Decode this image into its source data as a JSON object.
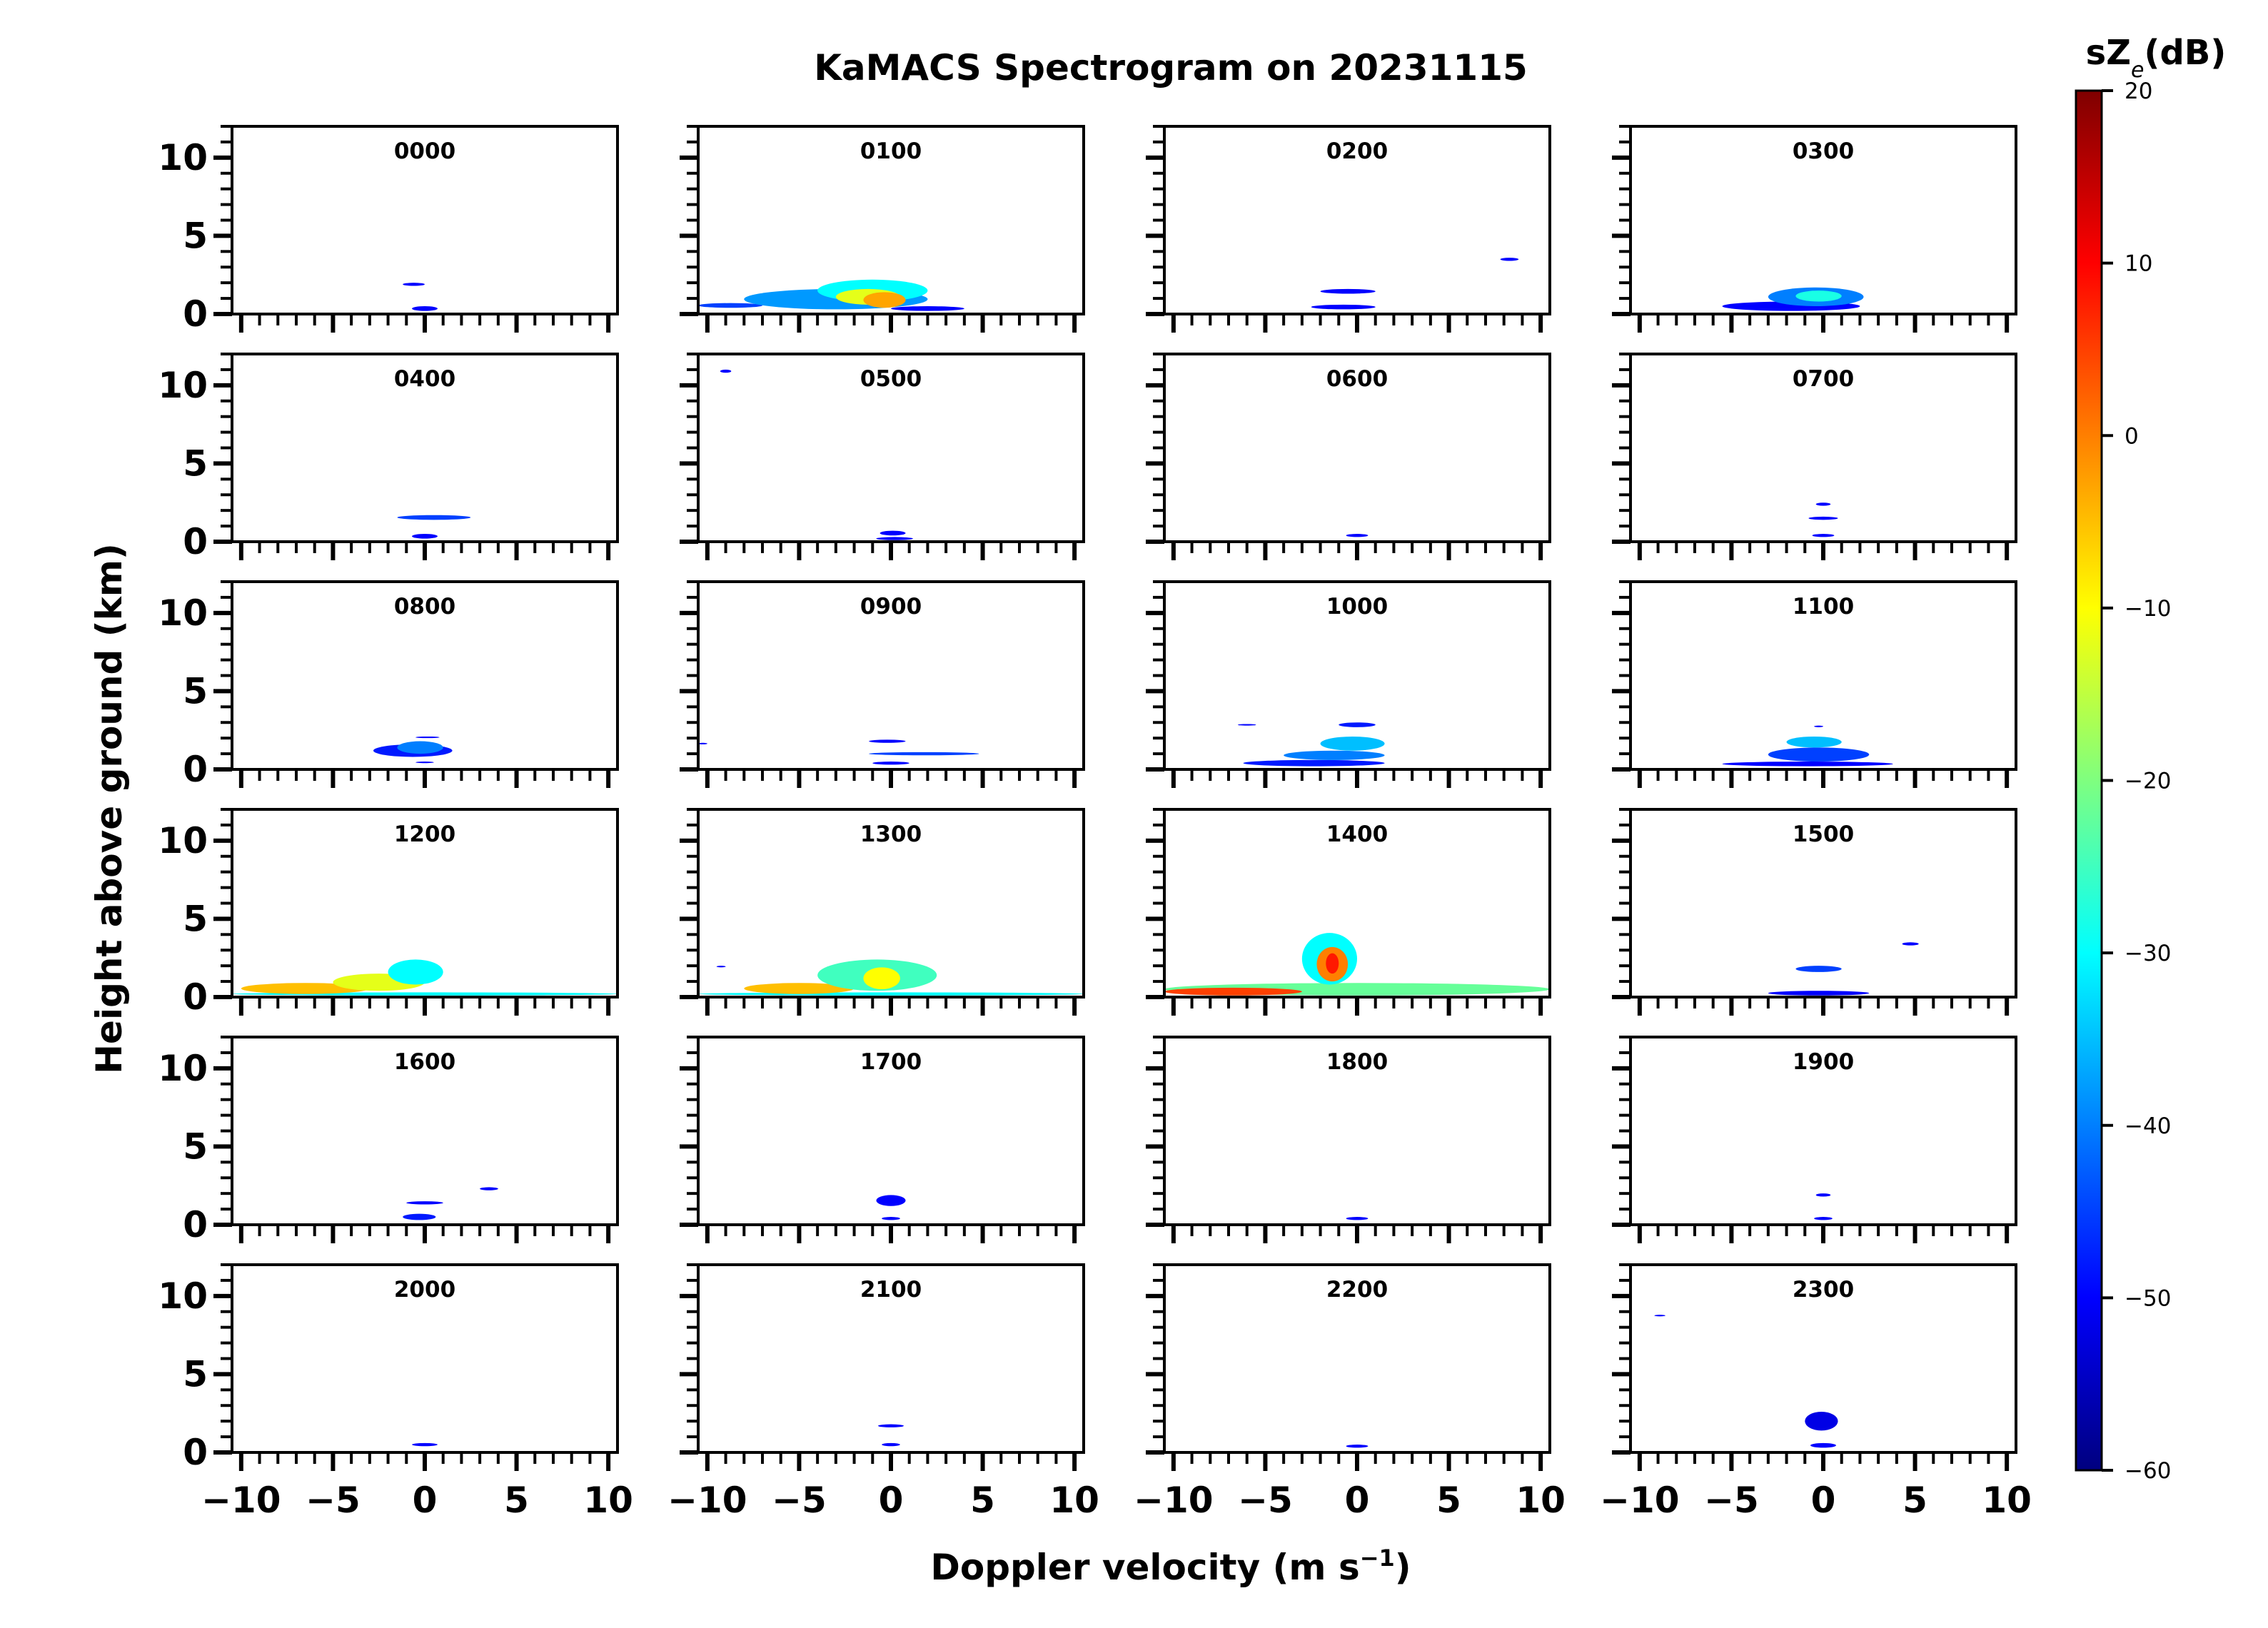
{
  "title": "KaMACS Spectrogram on 20231115",
  "xlabel": "Doppler velocity (m s",
  "xlabel_sup": "−1",
  "xlabel_close": ")",
  "ylabel": "Height above ground (km)",
  "colorbar": {
    "label_main": "sZ",
    "label_sub": "e",
    "label_tail": "(dB)",
    "ticks": [
      "20",
      "10",
      "0",
      "−10",
      "−20",
      "−30",
      "−40",
      "−50",
      "−60"
    ],
    "range": [
      -60,
      20
    ],
    "colormap": "jet",
    "colors": [
      "#00007f",
      "#0000ff",
      "#007fff",
      "#00ffff",
      "#7fff7f",
      "#ffff00",
      "#ff7f00",
      "#ff0000",
      "#7f0000"
    ]
  },
  "chart_data": {
    "type": "heatmap",
    "layout": "6 rows x 4 columns of small multiples",
    "x_axis": {
      "range": [
        -10.5,
        10.5
      ],
      "tick_labels": [
        "−10",
        "−5",
        "0",
        "5",
        "10"
      ],
      "tick_values": [
        -10,
        -5,
        0,
        5,
        10
      ]
    },
    "y_axis": {
      "range": [
        0,
        12
      ],
      "tick_labels": [
        "0",
        "5",
        "10"
      ],
      "tick_values": [
        0,
        5,
        10
      ]
    },
    "panels": [
      {
        "label": "0000",
        "echoes": [
          {
            "x": [
              -1.2,
              0
            ],
            "y": [
              1.8,
              2.0
            ],
            "dB": -50
          },
          {
            "x": [
              -0.7,
              0.7
            ],
            "y": [
              0.2,
              0.5
            ],
            "dB": -50
          }
        ]
      },
      {
        "label": "0100",
        "echoes": [
          {
            "x": [
              -10.5,
              -7
            ],
            "y": [
              0.4,
              0.7
            ],
            "dB": -45
          },
          {
            "x": [
              -8,
              2
            ],
            "y": [
              0.3,
              1.6
            ],
            "dB": -38
          },
          {
            "x": [
              -4,
              2
            ],
            "y": [
              0.8,
              2.2
            ],
            "dB": -30
          },
          {
            "x": [
              -3,
              0.5
            ],
            "y": [
              0.6,
              1.6
            ],
            "dB": -12
          },
          {
            "x": [
              -1.5,
              0.8
            ],
            "y": [
              0.4,
              1.4
            ],
            "dB": -3
          },
          {
            "x": [
              0,
              4
            ],
            "y": [
              0.2,
              0.5
            ],
            "dB": -50
          }
        ]
      },
      {
        "label": "0200",
        "echoes": [
          {
            "x": [
              -2,
              1
            ],
            "y": [
              1.3,
              1.6
            ],
            "dB": -50
          },
          {
            "x": [
              -2.5,
              1
            ],
            "y": [
              0.3,
              0.6
            ],
            "dB": -50
          },
          {
            "x": [
              7.8,
              8.8
            ],
            "y": [
              3.4,
              3.6
            ],
            "dB": -50
          }
        ]
      },
      {
        "label": "0300",
        "echoes": [
          {
            "x": [
              -5.5,
              2
            ],
            "y": [
              0.2,
              0.8
            ],
            "dB": -50
          },
          {
            "x": [
              -3,
              2.2
            ],
            "y": [
              0.5,
              1.7
            ],
            "dB": -40
          },
          {
            "x": [
              -1.5,
              1
            ],
            "y": [
              0.8,
              1.5
            ],
            "dB": -28
          }
        ]
      },
      {
        "label": "0400",
        "echoes": [
          {
            "x": [
              -1.5,
              2.5
            ],
            "y": [
              1.4,
              1.7
            ],
            "dB": -45
          },
          {
            "x": [
              -0.7,
              0.7
            ],
            "y": [
              0.2,
              0.5
            ],
            "dB": -50
          }
        ]
      },
      {
        "label": "0500",
        "echoes": [
          {
            "x": [
              -9.3,
              -8.7
            ],
            "y": [
              10.8,
              11
            ],
            "dB": -50
          },
          {
            "x": [
              -0.6,
              0.8
            ],
            "y": [
              0.4,
              0.7
            ],
            "dB": -50
          },
          {
            "x": [
              -0.8,
              1.2
            ],
            "y": [
              0.1,
              0.3
            ],
            "dB": -50
          }
        ]
      },
      {
        "label": "0600",
        "echoes": [
          {
            "x": [
              -0.6,
              0.6
            ],
            "y": [
              0.3,
              0.5
            ],
            "dB": -50
          }
        ]
      },
      {
        "label": "0700",
        "echoes": [
          {
            "x": [
              -0.4,
              0.4
            ],
            "y": [
              2.3,
              2.5
            ],
            "dB": -50
          },
          {
            "x": [
              -0.8,
              0.8
            ],
            "y": [
              1.4,
              1.6
            ],
            "dB": -50
          },
          {
            "x": [
              -0.6,
              0.6
            ],
            "y": [
              0.3,
              0.5
            ],
            "dB": -50
          }
        ]
      },
      {
        "label": "0800",
        "echoes": [
          {
            "x": [
              -2.8,
              1.5
            ],
            "y": [
              0.8,
              1.6
            ],
            "dB": -48
          },
          {
            "x": [
              -1.5,
              1
            ],
            "y": [
              1,
              1.8
            ],
            "dB": -40
          },
          {
            "x": [
              -0.5,
              0.8
            ],
            "y": [
              2,
              2.1
            ],
            "dB": -50
          },
          {
            "x": [
              -0.5,
              0.5
            ],
            "y": [
              0.4,
              0.5
            ],
            "dB": -50
          }
        ]
      },
      {
        "label": "0900",
        "echoes": [
          {
            "x": [
              -10.5,
              -10
            ],
            "y": [
              1.6,
              1.7
            ],
            "dB": -50
          },
          {
            "x": [
              -1.2,
              0.8
            ],
            "y": [
              1.7,
              1.9
            ],
            "dB": -50
          },
          {
            "x": [
              -1.2,
              4.8
            ],
            "y": [
              0.9,
              1.1
            ],
            "dB": -45
          },
          {
            "x": [
              -1,
              1
            ],
            "y": [
              0.3,
              0.5
            ],
            "dB": -50
          }
        ]
      },
      {
        "label": "1000",
        "echoes": [
          {
            "x": [
              -6.5,
              -5.5
            ],
            "y": [
              2.8,
              2.9
            ],
            "dB": -50
          },
          {
            "x": [
              -6.2,
              1.5
            ],
            "y": [
              0.2,
              0.6
            ],
            "dB": -48
          },
          {
            "x": [
              -4,
              1.5
            ],
            "y": [
              0.6,
              1.2
            ],
            "dB": -40
          },
          {
            "x": [
              -2,
              1.5
            ],
            "y": [
              1.2,
              2.1
            ],
            "dB": -35
          },
          {
            "x": [
              -1,
              1
            ],
            "y": [
              2.7,
              3
            ],
            "dB": -48
          }
        ]
      },
      {
        "label": "1100",
        "echoes": [
          {
            "x": [
              -5.5,
              3.8
            ],
            "y": [
              0.2,
              0.5
            ],
            "dB": -50
          },
          {
            "x": [
              -3,
              2.5
            ],
            "y": [
              0.5,
              1.4
            ],
            "dB": -45
          },
          {
            "x": [
              -2,
              1
            ],
            "y": [
              1.4,
              2.1
            ],
            "dB": -35
          },
          {
            "x": [
              -0.5,
              0
            ],
            "y": [
              2.7,
              2.8
            ],
            "dB": -50
          }
        ]
      },
      {
        "label": "1200",
        "echoes": [
          {
            "x": [
              -10.5,
              10.5
            ],
            "y": [
              0.1,
              0.3
            ],
            "dB": -30
          },
          {
            "x": [
              -10,
              -3
            ],
            "y": [
              0.2,
              0.9
            ],
            "dB": -5
          },
          {
            "x": [
              -5,
              0
            ],
            "y": [
              0.4,
              1.5
            ],
            "dB": -12
          },
          {
            "x": [
              -2,
              1
            ],
            "y": [
              0.8,
              2.4
            ],
            "dB": -30
          }
        ]
      },
      {
        "label": "1300",
        "echoes": [
          {
            "x": [
              -9.5,
              -9
            ],
            "y": [
              1.9,
              2.0
            ],
            "dB": -50
          },
          {
            "x": [
              -10.5,
              10.5
            ],
            "y": [
              0.1,
              0.3
            ],
            "dB": -30
          },
          {
            "x": [
              -8,
              -2
            ],
            "y": [
              0.2,
              0.9
            ],
            "dB": -5
          },
          {
            "x": [
              -4,
              2.5
            ],
            "y": [
              0.4,
              2.4
            ],
            "dB": -25
          },
          {
            "x": [
              -1.5,
              0.5
            ],
            "y": [
              0.5,
              1.9
            ],
            "dB": -10
          }
        ]
      },
      {
        "label": "1400",
        "echoes": [
          {
            "x": [
              -10.5,
              10.5
            ],
            "y": [
              0.1,
              0.9
            ],
            "dB": -22
          },
          {
            "x": [
              -10.5,
              -3
            ],
            "y": [
              0.1,
              0.6
            ],
            "dB": 5
          },
          {
            "x": [
              -3,
              0
            ],
            "y": [
              0.8,
              4.1
            ],
            "dB": -30
          },
          {
            "x": [
              -2.2,
              -0.5
            ],
            "y": [
              1,
              3.2
            ],
            "dB": 0
          },
          {
            "x": [
              -1.7,
              -1
            ],
            "y": [
              1.5,
              2.8
            ],
            "dB": 8
          }
        ]
      },
      {
        "label": "1500",
        "echoes": [
          {
            "x": [
              4.3,
              5.2
            ],
            "y": [
              3.3,
              3.5
            ],
            "dB": -50
          },
          {
            "x": [
              -1.5,
              1
            ],
            "y": [
              1.6,
              2
            ],
            "dB": -45
          },
          {
            "x": [
              -3,
              2.5
            ],
            "y": [
              0.1,
              0.4
            ],
            "dB": -50
          }
        ]
      },
      {
        "label": "1600",
        "echoes": [
          {
            "x": [
              3,
              4
            ],
            "y": [
              2.2,
              2.4
            ],
            "dB": -50
          },
          {
            "x": [
              -1,
              1
            ],
            "y": [
              1.3,
              1.5
            ],
            "dB": -50
          },
          {
            "x": [
              -1.2,
              0.6
            ],
            "y": [
              0.3,
              0.7
            ],
            "dB": -48
          }
        ]
      },
      {
        "label": "1700",
        "echoes": [
          {
            "x": [
              -0.8,
              0.8
            ],
            "y": [
              1.2,
              1.9
            ],
            "dB": -50
          },
          {
            "x": [
              -0.5,
              0.5
            ],
            "y": [
              0.3,
              0.5
            ],
            "dB": -50
          }
        ]
      },
      {
        "label": "1800",
        "echoes": [
          {
            "x": [
              -0.6,
              0.6
            ],
            "y": [
              0.3,
              0.5
            ],
            "dB": -50
          }
        ]
      },
      {
        "label": "1900",
        "echoes": [
          {
            "x": [
              -0.4,
              0.4
            ],
            "y": [
              1.8,
              2
            ],
            "dB": -50
          },
          {
            "x": [
              -0.5,
              0.5
            ],
            "y": [
              0.3,
              0.5
            ],
            "dB": -50
          }
        ]
      },
      {
        "label": "2000",
        "echoes": [
          {
            "x": [
              -0.7,
              0.7
            ],
            "y": [
              0.4,
              0.6
            ],
            "dB": -50
          }
        ]
      },
      {
        "label": "2100",
        "echoes": [
          {
            "x": [
              -0.7,
              0.7
            ],
            "y": [
              1.6,
              1.8
            ],
            "dB": -50
          },
          {
            "x": [
              -0.5,
              0.5
            ],
            "y": [
              0.4,
              0.6
            ],
            "dB": -50
          }
        ]
      },
      {
        "label": "2200",
        "echoes": [
          {
            "x": [
              -0.6,
              0.6
            ],
            "y": [
              0.3,
              0.5
            ],
            "dB": -50
          }
        ]
      },
      {
        "label": "2300",
        "echoes": [
          {
            "x": [
              -9.2,
              -8.6
            ],
            "y": [
              8.7,
              8.8
            ],
            "dB": -50
          },
          {
            "x": [
              -1,
              0.8
            ],
            "y": [
              1.4,
              2.6
            ],
            "dB": -52
          },
          {
            "x": [
              -0.7,
              0.7
            ],
            "y": [
              0.3,
              0.6
            ],
            "dB": -50
          }
        ]
      }
    ]
  }
}
